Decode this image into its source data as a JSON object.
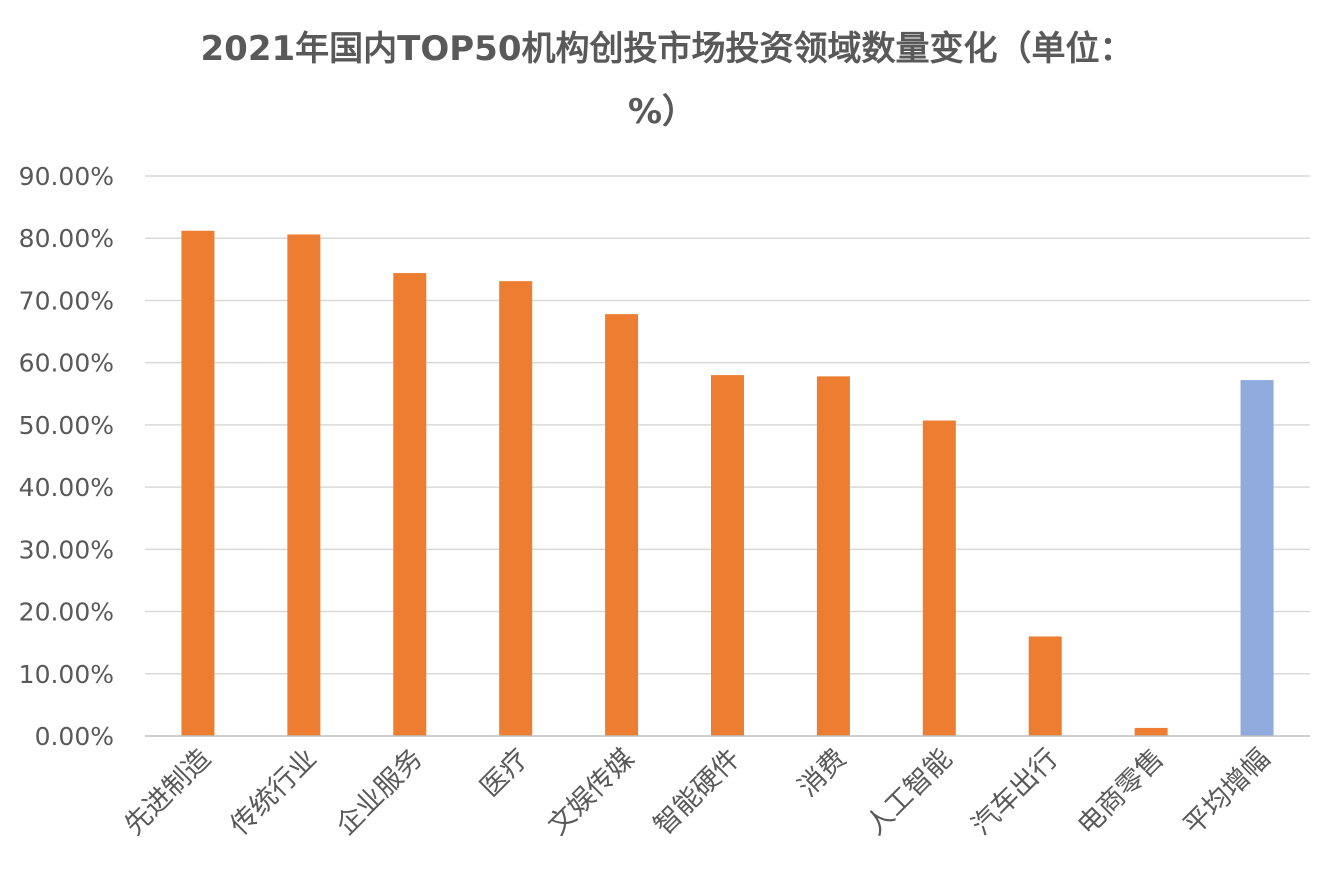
{
  "chart_data": {
    "type": "bar",
    "title": "2021年国内TOP50机构创投市场投资领域数量变化（单位：%）",
    "title_lines": [
      "2021年国内TOP50机构创投市场投资领域数量变化（单位：",
      "%）"
    ],
    "categories": [
      "先进制造",
      "传统行业",
      "企业服务",
      "医疗",
      "文娱传媒",
      "智能硬件",
      "消费",
      "人工智能",
      "汽车出行",
      "电商零售",
      "平均增幅"
    ],
    "values": [
      81.2,
      80.6,
      74.4,
      73.1,
      67.8,
      58.0,
      57.8,
      50.7,
      16.0,
      1.3,
      57.2
    ],
    "ylim": [
      0,
      90
    ],
    "yticks": [
      "0.00%",
      "10.00%",
      "20.00%",
      "30.00%",
      "40.00%",
      "50.00%",
      "60.00%",
      "70.00%",
      "80.00%",
      "90.00%"
    ],
    "xlabel": "",
    "ylabel": "",
    "grid": true,
    "legend": "none",
    "colors": {
      "bar": "#ed7d31",
      "highlight": "#8faadc"
    },
    "highlight_category": "平均增幅"
  }
}
